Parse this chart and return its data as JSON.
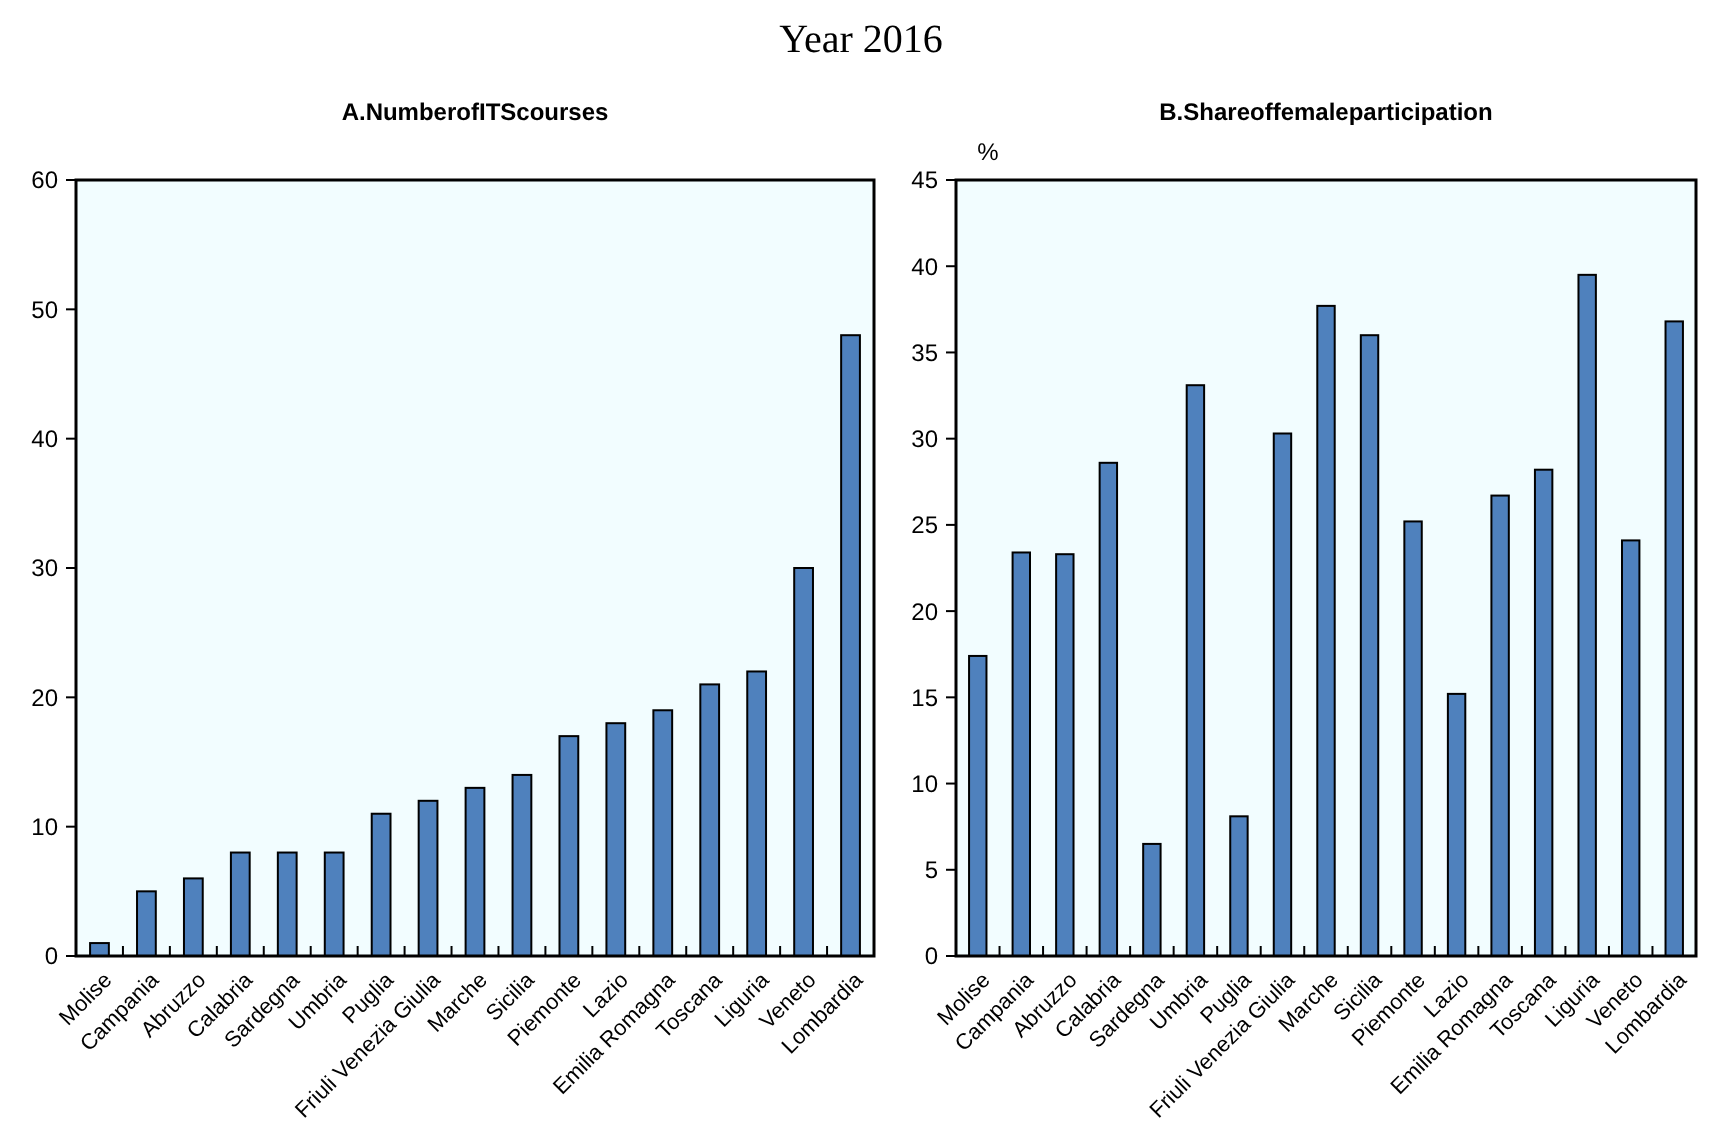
{
  "chart_data": [
    {
      "type": "bar",
      "title": "A.NumberofITScourses",
      "annotations": [
        "Year 2016"
      ],
      "categories": [
        "Molise",
        "Campania",
        "Abruzzo",
        "Calabria",
        "Sardegna",
        "Umbria",
        "Puglia",
        "Friuli Venezia Giulia",
        "Marche",
        "Sicilia",
        "Piemonte",
        "Lazio",
        "Emilia Romagna",
        "Toscana",
        "Liguria",
        "Veneto",
        "Lombardia"
      ],
      "values": [
        1,
        5,
        6,
        8,
        8,
        8,
        11,
        12,
        13,
        14,
        17,
        18,
        19,
        21,
        22,
        30,
        48
      ],
      "color": "#4f81bd",
      "ylim": [
        0,
        60
      ],
      "yticks": [
        0,
        10,
        20,
        30,
        40,
        50,
        60
      ]
    },
    {
      "type": "bar",
      "title": "B.Shareoffemaleparticipation",
      "ylabel": "%",
      "categories": [
        "Molise",
        "Campania",
        "Abruzzo",
        "Calabria",
        "Sardegna",
        "Umbria",
        "Puglia",
        "Friuli Venezia Giulia",
        "Marche",
        "Sicilia",
        "Piemonte",
        "Lazio",
        "Emilia Romagna",
        "Toscana",
        "Liguria",
        "Veneto",
        "Lombardia"
      ],
      "values": [
        17.4,
        23.4,
        23.3,
        28.6,
        6.5,
        33.1,
        8.1,
        30.3,
        37.7,
        36.0,
        25.2,
        15.2,
        26.7,
        28.2,
        39.5,
        24.1,
        36.8
      ],
      "color": "#4f81bd",
      "ylim": [
        0,
        45
      ],
      "yticks": [
        0,
        5,
        10,
        15,
        20,
        25,
        30,
        35,
        40,
        45
      ]
    }
  ]
}
